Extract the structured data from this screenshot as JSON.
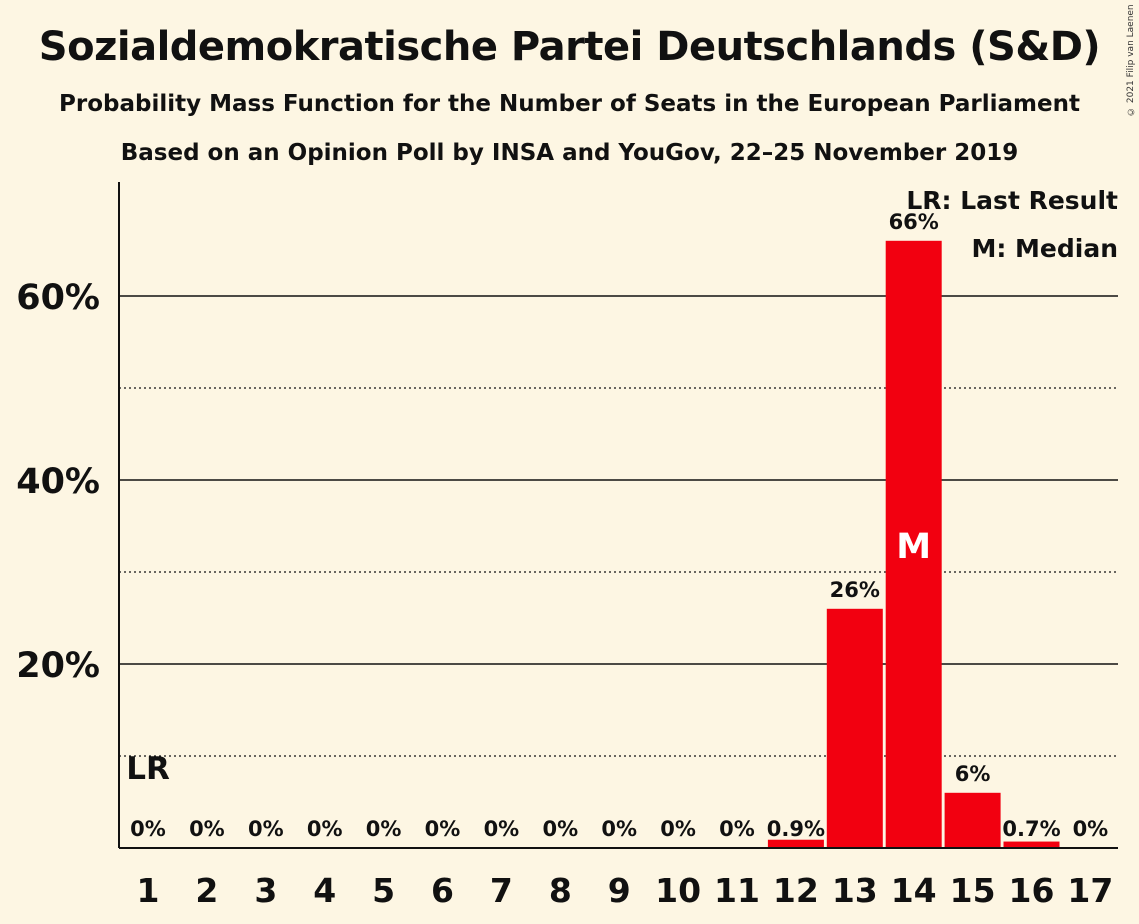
{
  "title": "Sozialdemokratische Partei Deutschlands (S&D)",
  "subtitle": "Probability Mass Function for the Number of Seats in the European Parliament",
  "subtitle2": "Based on an Opinion Poll by INSA and YouGov, 22–25 November 2019",
  "copyright": "© 2021 Filip van Laenen",
  "colors": {
    "bar": "#F20010",
    "background": "#FDF6E3",
    "text": "#111111"
  },
  "chart_data": {
    "type": "bar",
    "categories": [
      "1",
      "2",
      "3",
      "4",
      "5",
      "6",
      "7",
      "8",
      "9",
      "10",
      "11",
      "12",
      "13",
      "14",
      "15",
      "16",
      "17"
    ],
    "values": [
      0,
      0,
      0,
      0,
      0,
      0,
      0,
      0,
      0,
      0,
      0,
      0.9,
      26,
      66,
      6,
      0.7,
      0
    ],
    "labels": [
      "0%",
      "0%",
      "0%",
      "0%",
      "0%",
      "0%",
      "0%",
      "0%",
      "0%",
      "0%",
      "0%",
      "0.9%",
      "26%",
      "66%",
      "6%",
      "0.7%",
      "0%"
    ],
    "ylim": [
      0,
      72
    ],
    "yticks": [
      20,
      40,
      60
    ],
    "ytick_labels": [
      "20%",
      "40%",
      "60%"
    ],
    "minor_gridlines": [
      10,
      30,
      50
    ],
    "last_result_seat": "1",
    "last_result_label": "LR",
    "median_seat": "14",
    "median_label": "M",
    "legend": [
      "LR: Last Result",
      "M: Median"
    ],
    "legend_position": "top-right"
  }
}
